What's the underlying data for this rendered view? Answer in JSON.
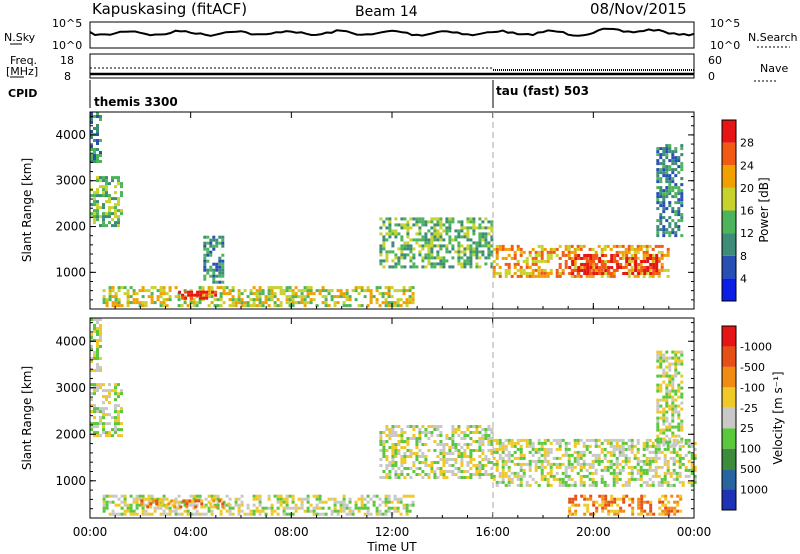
{
  "header": {
    "station": "Kapuskasing (fitACF)",
    "beam": "Beam 14",
    "date": "08/Nov/2015"
  },
  "top_panels": {
    "nsky_label": "N.Sky",
    "nsky_left_ticks": [
      "10^5",
      "10^0"
    ],
    "nsky_right_ticks": [
      "10^5",
      "10^0"
    ],
    "nsearch_label": "N.Search",
    "freq_label": "Freq.",
    "freq_unit": "[MHz]",
    "freq_ticks": [
      "18",
      "8"
    ],
    "nave_ticks": [
      "60",
      "0"
    ],
    "nave_label": "Nave",
    "cpid_label": "CPID",
    "cpid_left": "themis 3300",
    "cpid_right": "tau (fast) 503"
  },
  "chart_data": [
    {
      "type": "heatmap",
      "ylabel": "Slant Range [km]",
      "ylim": [
        200,
        4500
      ],
      "yticks": [
        "1000",
        "2000",
        "3000",
        "4000"
      ],
      "xlim": [
        0,
        24
      ],
      "colorbar_label": "Power [dB]",
      "colorbar_ticks": [
        "4",
        "8",
        "12",
        "16",
        "20",
        "24",
        "28"
      ],
      "colors": [
        "#0a1ee6",
        "#2850b4",
        "#3c8c78",
        "#4cb45a",
        "#c8d22c",
        "#f0a000",
        "#f05a14",
        "#e61414"
      ],
      "echo_regions": [
        {
          "t": [
            0.0,
            0.4
          ],
          "r": [
            3400,
            4500
          ],
          "level": 2
        },
        {
          "t": [
            0.0,
            1.3
          ],
          "r": [
            2000,
            3100
          ],
          "level": 3
        },
        {
          "t": [
            0.5,
            12.8
          ],
          "r": [
            250,
            700
          ],
          "level": 4
        },
        {
          "t": [
            3.5,
            5.0
          ],
          "r": [
            450,
            600
          ],
          "level": 7
        },
        {
          "t": [
            4.5,
            5.3
          ],
          "r": [
            800,
            1800
          ],
          "level": 2
        },
        {
          "t": [
            11.5,
            16.0
          ],
          "r": [
            1100,
            2200
          ],
          "level": 3
        },
        {
          "t": [
            16.0,
            23.0
          ],
          "r": [
            900,
            1600
          ],
          "level": 5
        },
        {
          "t": [
            19.0,
            22.5
          ],
          "r": [
            950,
            1400
          ],
          "level": 7
        },
        {
          "t": [
            22.5,
            23.5
          ],
          "r": [
            1800,
            3800
          ],
          "level": 2
        }
      ]
    },
    {
      "type": "heatmap",
      "ylabel": "Slant Range [km]",
      "ylim": [
        200,
        4500
      ],
      "yticks": [
        "1000",
        "2000",
        "3000",
        "4000"
      ],
      "xlim": [
        0,
        24
      ],
      "xticks": [
        "00:00",
        "04:00",
        "08:00",
        "12:00",
        "16:00",
        "20:00",
        "00:00"
      ],
      "xlabel": "Time UT",
      "colorbar_label": "Velocity [m s⁻¹]",
      "colorbar_ticks": [
        "1000",
        "500",
        "100",
        "25",
        "-25",
        "-100",
        "-500",
        "-1000"
      ],
      "colors": [
        "#1e32b4",
        "#2864a0",
        "#3c8c3c",
        "#5ac83c",
        "#c8c8c8",
        "#f0c828",
        "#f08c14",
        "#e65014",
        "#e61414"
      ],
      "echo_regions": [
        {
          "t": [
            0.0,
            0.4
          ],
          "r": [
            3400,
            4500
          ],
          "level": 4
        },
        {
          "t": [
            0.0,
            1.3
          ],
          "r": [
            2000,
            3100
          ],
          "level": 4
        },
        {
          "t": [
            0.5,
            12.8
          ],
          "r": [
            250,
            700
          ],
          "level": 4
        },
        {
          "t": [
            2.0,
            5.5
          ],
          "r": [
            450,
            600
          ],
          "level": 6
        },
        {
          "t": [
            11.5,
            16.0
          ],
          "r": [
            1100,
            2200
          ],
          "level": 4
        },
        {
          "t": [
            16.0,
            24.0
          ],
          "r": [
            900,
            1900
          ],
          "level": 4
        },
        {
          "t": [
            19.0,
            23.5
          ],
          "r": [
            300,
            700
          ],
          "level": 6
        },
        {
          "t": [
            22.5,
            23.5
          ],
          "r": [
            1800,
            3800
          ],
          "level": 4
        }
      ]
    }
  ]
}
